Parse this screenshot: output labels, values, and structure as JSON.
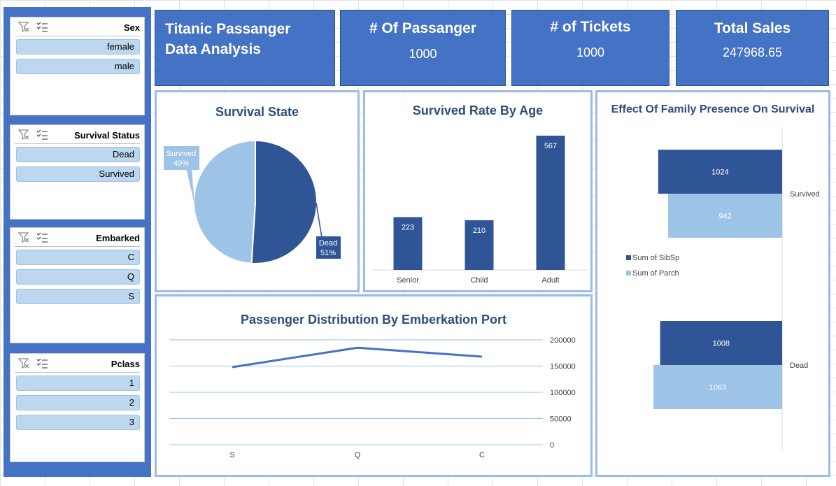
{
  "slicers": [
    {
      "title": "Sex",
      "items": [
        "female",
        "male"
      ]
    },
    {
      "title": "Survival Status",
      "items": [
        "Dead",
        "Survived"
      ]
    },
    {
      "title": "Embarked",
      "items": [
        "C",
        "Q",
        "S"
      ]
    },
    {
      "title": "Pclass",
      "items": [
        "1",
        "2",
        "3"
      ]
    }
  ],
  "header": {
    "title": "Titanic Passanger Data Analysis",
    "cards": [
      {
        "label": "# Of Passanger",
        "value": "1000"
      },
      {
        "label": "# of Tickets",
        "value": "1000"
      },
      {
        "label": "Total Sales",
        "value": "247968.65"
      }
    ]
  },
  "colors": {
    "dark": "#2f5597",
    "light": "#9dc3e6",
    "accent": "#4472c4"
  },
  "chart_data": [
    {
      "type": "pie",
      "title": "Survival State",
      "categories": [
        "Dead",
        "Survived"
      ],
      "values": [
        51,
        49
      ],
      "labels": [
        {
          "name": "Dead",
          "pct": "51%"
        },
        {
          "name": "Survived",
          "pct": "49%"
        }
      ]
    },
    {
      "type": "bar",
      "title": "Survived Rate By Age",
      "categories": [
        "Senior",
        "Child",
        "Adult"
      ],
      "values": [
        223,
        210,
        567
      ],
      "data_labels": [
        "223",
        "210",
        "567"
      ]
    },
    {
      "type": "bar",
      "orientation": "horizontal",
      "title": "Effect Of Family Presence On Survival",
      "categories": [
        "Survived",
        "Dead"
      ],
      "series": [
        {
          "name": "Sum of SibSp",
          "values": [
            1024,
            1008
          ],
          "labels": [
            "1024",
            "1008"
          ]
        },
        {
          "name": "Sum of Parch",
          "values": [
            942,
            1063
          ],
          "labels": [
            "942",
            "1063"
          ]
        }
      ],
      "legend": "left"
    },
    {
      "type": "line",
      "title": "Passenger Distribution By Emberkation Port",
      "categories": [
        "S",
        "Q",
        "C"
      ],
      "values": [
        148000,
        185000,
        168000
      ],
      "ylim": [
        0,
        200000
      ],
      "yticks": [
        "0",
        "50000",
        "100000",
        "150000",
        "200000"
      ],
      "axis_side": "right",
      "grid": true
    }
  ]
}
